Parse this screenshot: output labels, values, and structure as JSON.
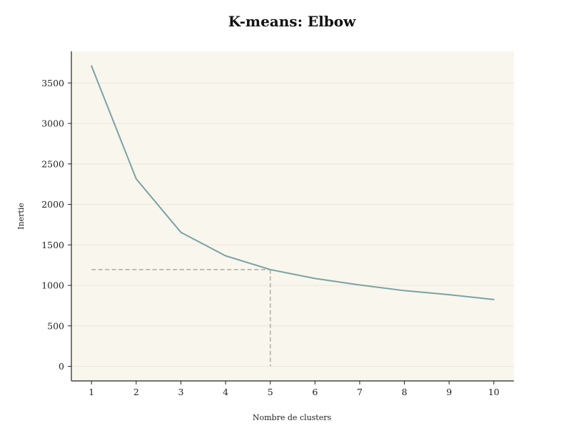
{
  "chart_data": {
    "type": "line",
    "title": "K-means: Elbow",
    "xlabel": "Nombre de clusters",
    "ylabel": "Inertie",
    "x": [
      1,
      2,
      3,
      4,
      5,
      6,
      7,
      8,
      9,
      10
    ],
    "series": [
      {
        "values": [
          3710,
          2315,
          1655,
          1365,
          1195,
          1085,
          1005,
          935,
          885,
          825
        ],
        "color": "#7aa3a3"
      }
    ],
    "xlim": [
      0.55,
      10.45
    ],
    "ylim": [
      -180,
      3890
    ],
    "xticks": [
      1,
      2,
      3,
      4,
      5,
      6,
      7,
      8,
      9,
      10
    ],
    "yticks": [
      0,
      500,
      1000,
      1500,
      2000,
      2500,
      3000,
      3500
    ],
    "grid": "horizontal",
    "plot_background": "#f9f6ee",
    "grid_color": "#ebe6da",
    "elbow": {
      "x": 5,
      "y": 1195,
      "color": "#b3b0a8"
    }
  }
}
